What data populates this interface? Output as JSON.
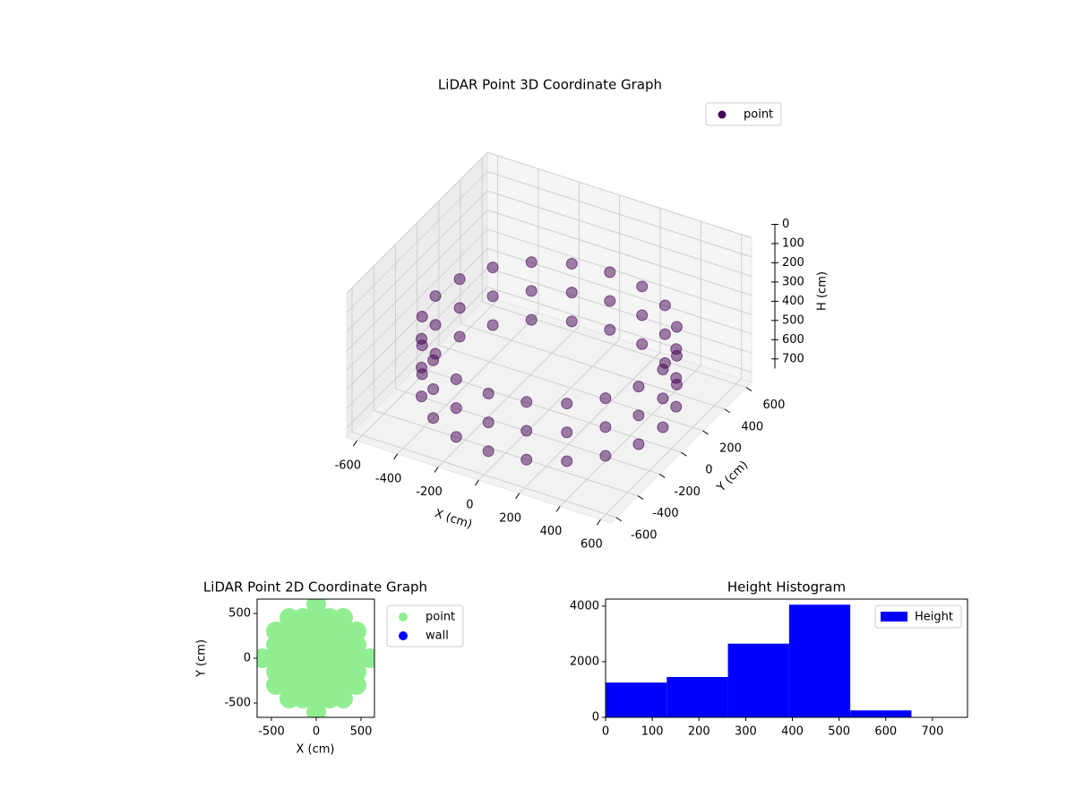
{
  "chart_data": [
    {
      "type": "scatter3d",
      "title": "LiDAR Point 3D Coordinate Graph",
      "xlabel": "X (cm)",
      "ylabel": "Y (cm)",
      "zlabel": "H (cm)",
      "xlim": [
        -650,
        650
      ],
      "ylim": [
        -650,
        650
      ],
      "zlim": [
        0,
        750
      ],
      "z_inverted": true,
      "xticks": [
        -600,
        -400,
        -200,
        0,
        200,
        400,
        600
      ],
      "yticks": [
        -600,
        -400,
        -200,
        0,
        200,
        400,
        600
      ],
      "zticks": [
        0,
        100,
        200,
        300,
        400,
        500,
        600,
        700
      ],
      "grid": true,
      "legend": "upper right",
      "series": [
        {
          "name": "point",
          "color": "#440154",
          "x": [
            560,
            533,
            453,
            329,
            173,
            0,
            -173,
            -329,
            -453,
            -533,
            -560,
            -533,
            -453,
            -329,
            -173,
            0,
            173,
            329,
            453,
            533,
            560,
            533,
            453,
            329,
            173,
            0,
            -173,
            -329,
            -453,
            -533,
            -560,
            -533,
            -453,
            -329,
            -173,
            0,
            173,
            329,
            453,
            533,
            560,
            533,
            453,
            329,
            173,
            0,
            -173,
            -329,
            -453,
            -533,
            -560,
            -533,
            -453,
            -329,
            -173,
            0,
            173,
            329,
            453,
            533
          ],
          "y": [
            0,
            173,
            329,
            453,
            533,
            560,
            533,
            453,
            329,
            173,
            0,
            -173,
            -329,
            -453,
            -533,
            -560,
            -533,
            -453,
            -329,
            -173,
            0,
            173,
            329,
            453,
            533,
            560,
            533,
            453,
            329,
            173,
            0,
            -173,
            -329,
            -453,
            -533,
            -560,
            -533,
            -453,
            -329,
            -173,
            0,
            173,
            329,
            453,
            533,
            560,
            533,
            453,
            329,
            173,
            0,
            -173,
            -329,
            -453,
            -533,
            -560,
            -533,
            -453,
            -329,
            -173
          ],
          "z": [
            350,
            350,
            350,
            350,
            350,
            350,
            350,
            350,
            350,
            350,
            350,
            350,
            350,
            350,
            350,
            350,
            350,
            350,
            350,
            350,
            500,
            500,
            500,
            500,
            500,
            500,
            500,
            500,
            500,
            500,
            500,
            500,
            500,
            500,
            500,
            500,
            500,
            500,
            500,
            500,
            650,
            650,
            650,
            650,
            650,
            650,
            650,
            650,
            650,
            650,
            650,
            650,
            650,
            650,
            650,
            650,
            650,
            650,
            650,
            650
          ]
        }
      ]
    },
    {
      "type": "scatter",
      "title": "LiDAR Point 2D Coordinate Graph",
      "xlabel": "X (cm)",
      "ylabel": "Y (cm)",
      "xlim": [
        -660,
        650
      ],
      "ylim": [
        -660,
        660
      ],
      "xticks": [
        -500,
        0,
        500
      ],
      "yticks": [
        -500,
        0,
        500
      ],
      "legend": "outside right",
      "series": [
        {
          "name": "point",
          "color": "#90ee90",
          "x": [
            -600,
            -450,
            -450,
            -450,
            -450,
            -450,
            -300,
            -300,
            -300,
            -300,
            -300,
            -300,
            -300,
            -150,
            -150,
            -150,
            -150,
            -150,
            -150,
            -150,
            0,
            0,
            0,
            0,
            0,
            0,
            0,
            0,
            0,
            150,
            150,
            150,
            150,
            150,
            150,
            150,
            300,
            300,
            300,
            300,
            300,
            300,
            300,
            450,
            450,
            450,
            450,
            450,
            600
          ],
          "y": [
            0,
            -300,
            -150,
            0,
            150,
            300,
            -450,
            -300,
            -150,
            0,
            150,
            300,
            450,
            -450,
            -300,
            -150,
            0,
            150,
            300,
            450,
            -600,
            -450,
            -300,
            -150,
            0,
            150,
            300,
            450,
            600,
            -450,
            -300,
            -150,
            0,
            150,
            300,
            450,
            -450,
            -300,
            -150,
            0,
            150,
            300,
            450,
            -300,
            -150,
            0,
            150,
            300,
            0
          ]
        },
        {
          "name": "wall",
          "color": "#0000ff",
          "x": [],
          "y": []
        }
      ]
    },
    {
      "type": "hist",
      "title": "Height Histogram",
      "bins": [
        0,
        131,
        262,
        393,
        524,
        655
      ],
      "counts": [
        1250,
        1450,
        2650,
        4050,
        250
      ],
      "xlim": [
        0,
        775
      ],
      "ylim": [
        0,
        4250
      ],
      "xticks": [
        0,
        100,
        200,
        300,
        400,
        500,
        600,
        700
      ],
      "yticks": [
        0,
        2000,
        4000
      ],
      "series_name": "Height",
      "color": "#0000ff",
      "legend": "upper right"
    }
  ]
}
